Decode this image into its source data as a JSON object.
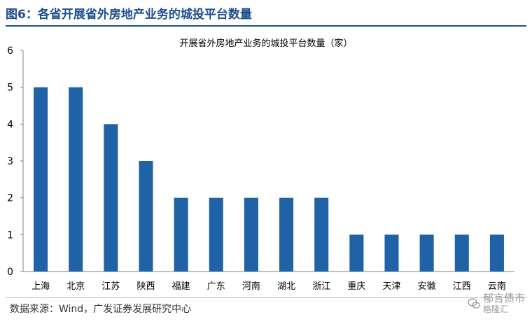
{
  "figure": {
    "title": "图6：各省开展省外房地产业务的城投平台数量",
    "source": "数据来源：Wind，广发证券发展研究中心",
    "watermark_main": "郁言债市",
    "watermark_sub": "格隆汇"
  },
  "chart_data": {
    "type": "bar",
    "title": "开展省外房地产业务的城投平台数量（家）",
    "xlabel": "",
    "ylabel": "",
    "ylim": [
      0,
      6
    ],
    "yticks": [
      0,
      1,
      2,
      3,
      4,
      5,
      6
    ],
    "grid": false,
    "bar_color": "#2062a6",
    "categories": [
      "上海",
      "北京",
      "江苏",
      "陕西",
      "福建",
      "广东",
      "河南",
      "湖北",
      "浙江",
      "重庆",
      "天津",
      "安徽",
      "江西",
      "云南"
    ],
    "values": [
      5,
      5,
      4,
      3,
      2,
      2,
      2,
      2,
      2,
      1,
      1,
      1,
      1,
      1
    ]
  }
}
